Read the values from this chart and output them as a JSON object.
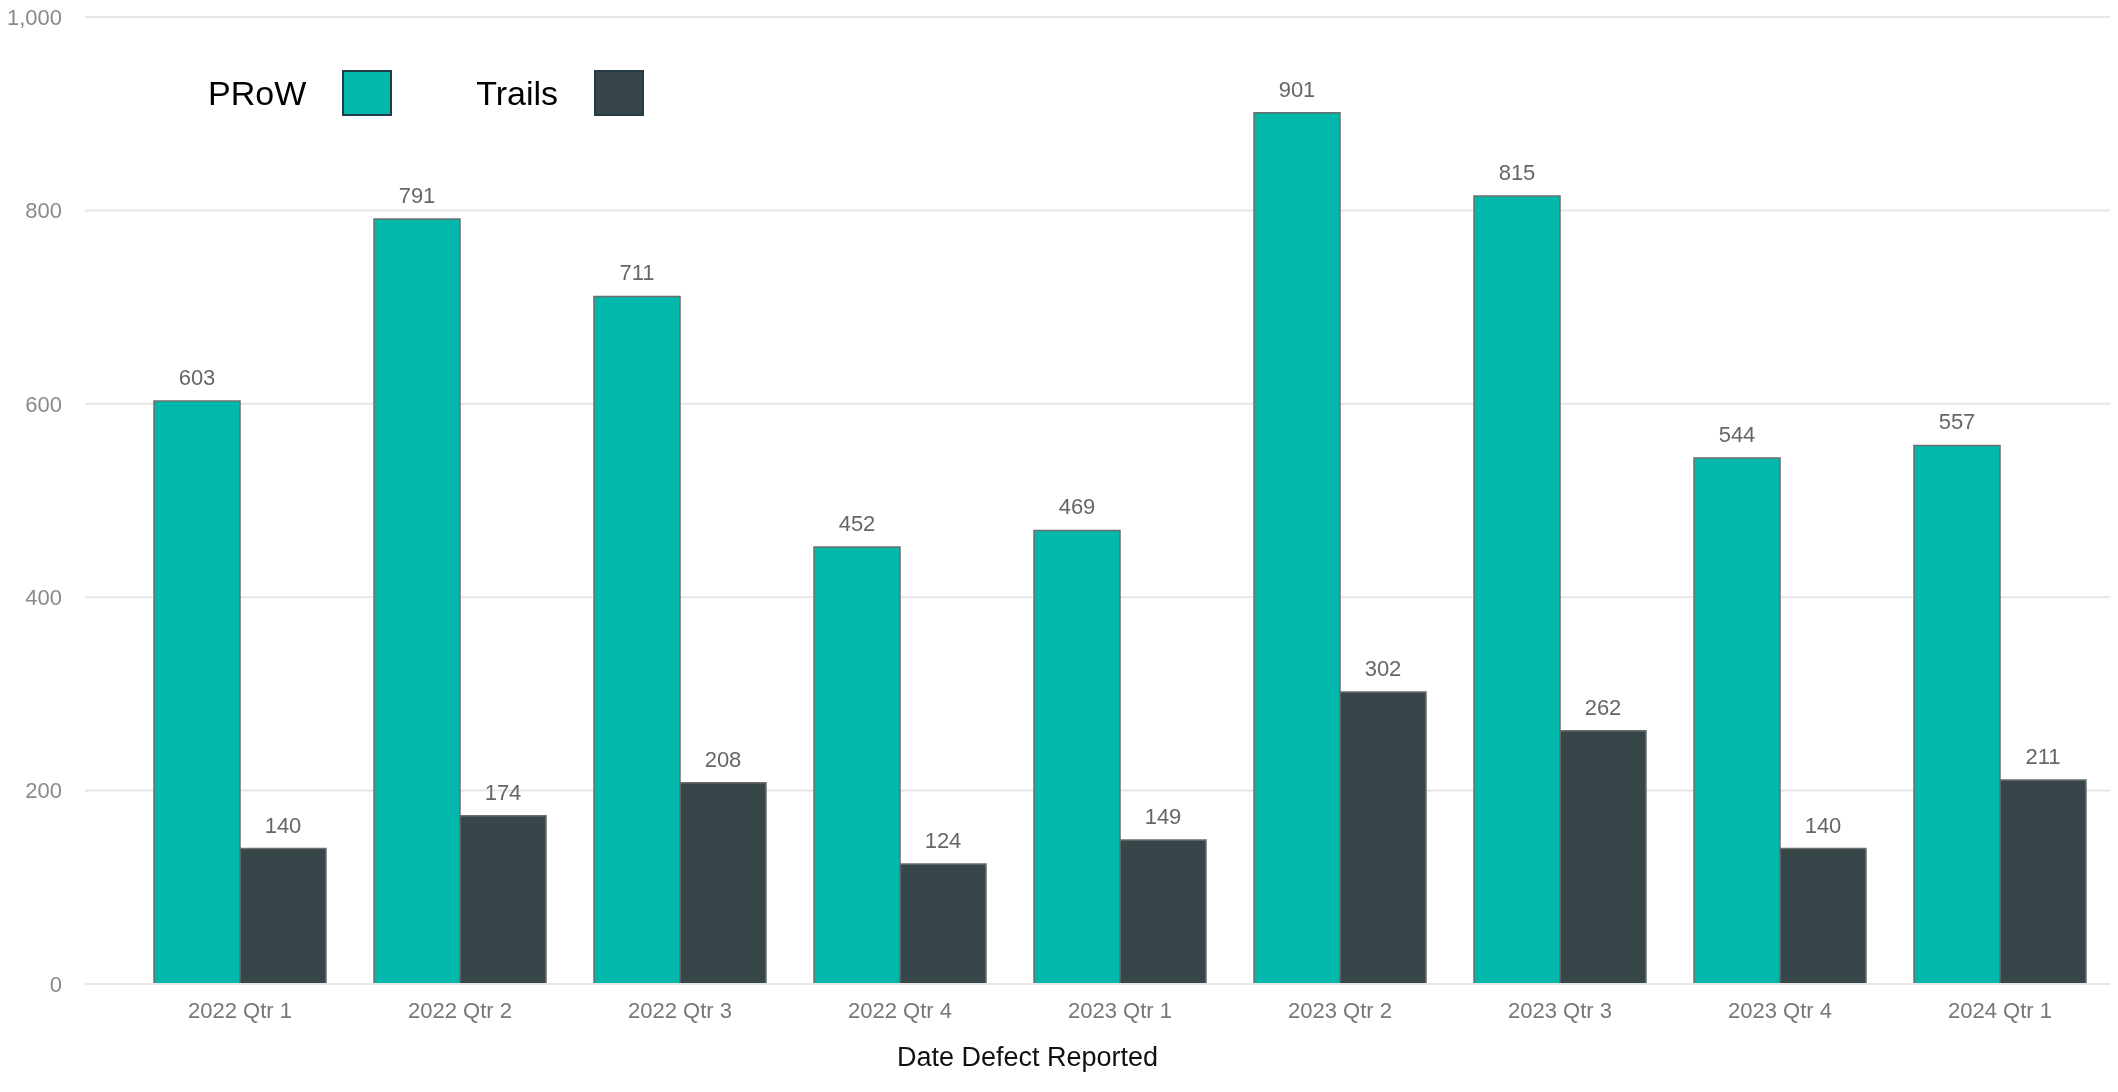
{
  "chart_data": {
    "type": "bar",
    "xlabel": "Date Defect Reported",
    "categories": [
      "2022 Qtr 1",
      "2022 Qtr 2",
      "2022 Qtr 3",
      "2022 Qtr 4",
      "2023 Qtr 1",
      "2023 Qtr 2",
      "2023 Qtr 3",
      "2023 Qtr 4",
      "2024 Qtr 1"
    ],
    "series": [
      {
        "name": "PRoW",
        "color": "#01b8aa",
        "values": [
          603,
          791,
          711,
          452,
          469,
          901,
          815,
          544,
          557
        ]
      },
      {
        "name": "Trails",
        "color": "#374649",
        "values": [
          140,
          174,
          208,
          124,
          149,
          302,
          262,
          140,
          211
        ]
      }
    ],
    "ylim": [
      0,
      1000
    ],
    "yticks": [
      0,
      200,
      400,
      600,
      800,
      {
        "value": 1000,
        "label": "1,000"
      }
    ],
    "grid": "y",
    "legend": "top left",
    "data_labels": true
  }
}
